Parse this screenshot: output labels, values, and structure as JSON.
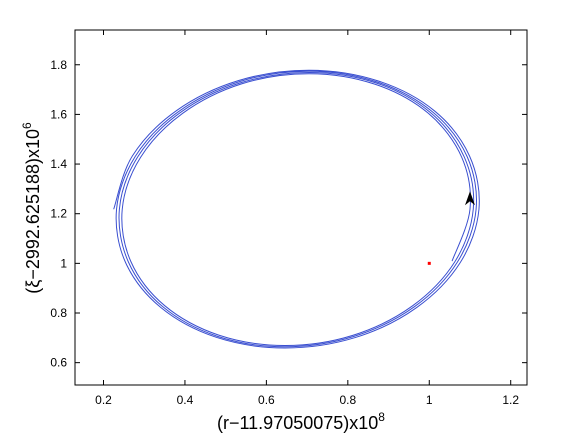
{
  "chart_data": {
    "type": "line",
    "x_label": "(r−11.97050075)x10",
    "x_label_exponent": "8",
    "y_label": "(ξ−2992.625188)x10",
    "y_label_exponent": "6",
    "xlim": [
      0.13,
      1.24
    ],
    "ylim": [
      0.51,
      1.94
    ],
    "xticks": [
      0.2,
      0.4,
      0.6,
      0.8,
      1,
      1.2
    ],
    "yticks": [
      0.6,
      0.8,
      1,
      1.2,
      1.4,
      1.6,
      1.8
    ],
    "grid": false,
    "series": [
      {
        "color": "#3a4fd0",
        "x": [
          1.056,
          1.1,
          1.08,
          0.998,
          0.866,
          0.705,
          0.539,
          0.394,
          0.291,
          0.246,
          0.267,
          0.35,
          0.483,
          0.645,
          0.812,
          0.959,
          1.063,
          1.108,
          1.086,
          1.003,
          0.869,
          0.705,
          0.536,
          0.389,
          0.284,
          0.239,
          0.261,
          0.345,
          0.48,
          0.645,
          0.815,
          0.964,
          1.069,
          1.115,
          1.093,
          1.008,
          0.871,
          0.705,
          0.534,
          0.384,
          0.278,
          0.232,
          0.254,
          0.34,
          0.477,
          0.645,
          0.818,
          0.969,
          1.076,
          1.122,
          1.099,
          1.013,
          0.874,
          0.705,
          0.531,
          0.379,
          0.271,
          0.225
        ],
        "y": [
          1.009,
          1.218,
          1.426,
          1.604,
          1.722,
          1.764,
          1.723,
          1.604,
          1.427,
          1.218,
          1.008,
          0.83,
          0.711,
          0.669,
          0.71,
          0.829,
          1.007,
          1.218,
          1.428,
          1.607,
          1.727,
          1.769,
          1.727,
          1.608,
          1.429,
          1.218,
          1.006,
          0.826,
          0.706,
          0.664,
          0.706,
          0.826,
          1.005,
          1.218,
          1.43,
          1.61,
          1.731,
          1.774,
          1.732,
          1.611,
          1.431,
          1.218,
          1.004,
          0.823,
          0.702,
          0.659,
          0.701,
          0.822,
          1.003,
          1.218,
          1.432,
          1.614,
          1.735,
          1.778,
          1.736,
          1.615,
          1.433,
          1.218
        ]
      }
    ],
    "point": {
      "x": 1,
      "y": 1,
      "color": "#ff0000"
    },
    "arrow": {
      "x": 1.1,
      "y": 1.25,
      "color": "#000000"
    }
  }
}
